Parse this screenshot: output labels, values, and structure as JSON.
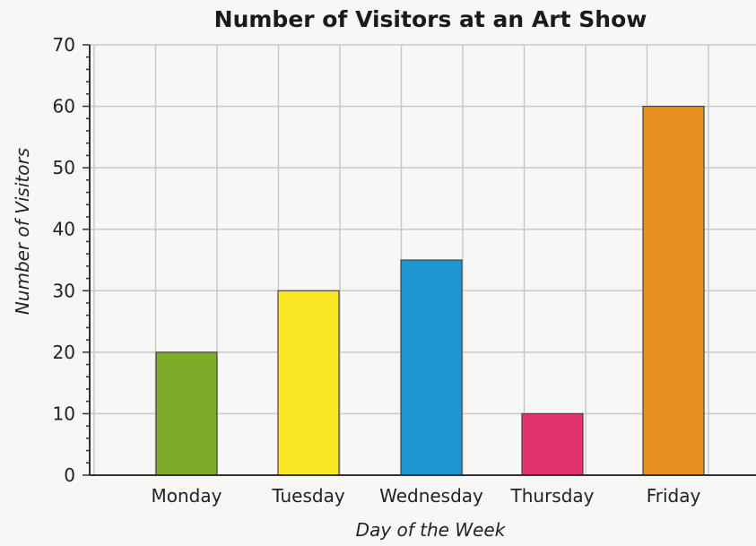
{
  "chart_data": {
    "type": "bar",
    "title": "Number of Visitors at an Art Show",
    "xlabel": "Day of the Week",
    "ylabel": "Number of Visitors",
    "categories": [
      "Monday",
      "Tuesday",
      "Wednesday",
      "Thursday",
      "Friday"
    ],
    "values": [
      20,
      30,
      35,
      10,
      60
    ],
    "colors": [
      "#7dac2a",
      "#fbe625",
      "#1e95d3",
      "#e0336c",
      "#e8901f"
    ],
    "ylim": [
      0,
      70
    ],
    "yticks": [
      0,
      10,
      20,
      30,
      40,
      50,
      60,
      70
    ],
    "grid": true
  }
}
